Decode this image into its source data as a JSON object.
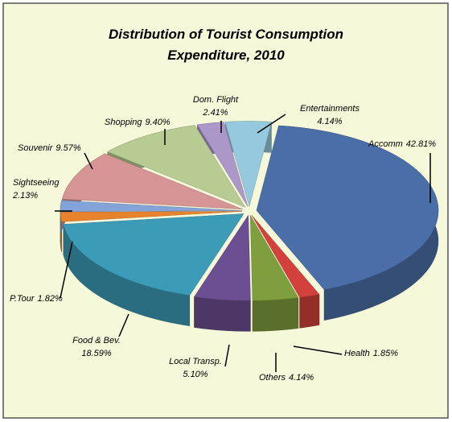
{
  "chart_data": {
    "type": "pie3d",
    "title": "Distribution of Tourist Consumption",
    "subtitle": "Expenditure, 2010",
    "categories": [
      "Accomm",
      "Health",
      "Others",
      "Local Transp.",
      "Food & Bev.",
      "P.Tour",
      "Sightseeing",
      "Souvenir",
      "Shopping",
      "Dom. Flight",
      "Entertainments"
    ],
    "values": [
      42.81,
      1.85,
      4.14,
      5.1,
      18.59,
      1.82,
      2.13,
      9.57,
      9.4,
      2.41,
      4.14
    ],
    "value_labels": [
      "42.81%",
      "1.85%",
      "4.14%",
      "5.10%",
      "18.59%",
      "1.82%",
      "2.13%",
      "9.57%",
      "9.40%",
      "2.41%",
      "4.14%"
    ],
    "colors": [
      "#4a6fa8",
      "#d2413b",
      "#7f9e3e",
      "#6c4f92",
      "#3c9cb8",
      "#e8832d",
      "#84a3d8",
      "#d79494",
      "#b7cb92",
      "#ab98c9",
      "#96c8de"
    ]
  }
}
